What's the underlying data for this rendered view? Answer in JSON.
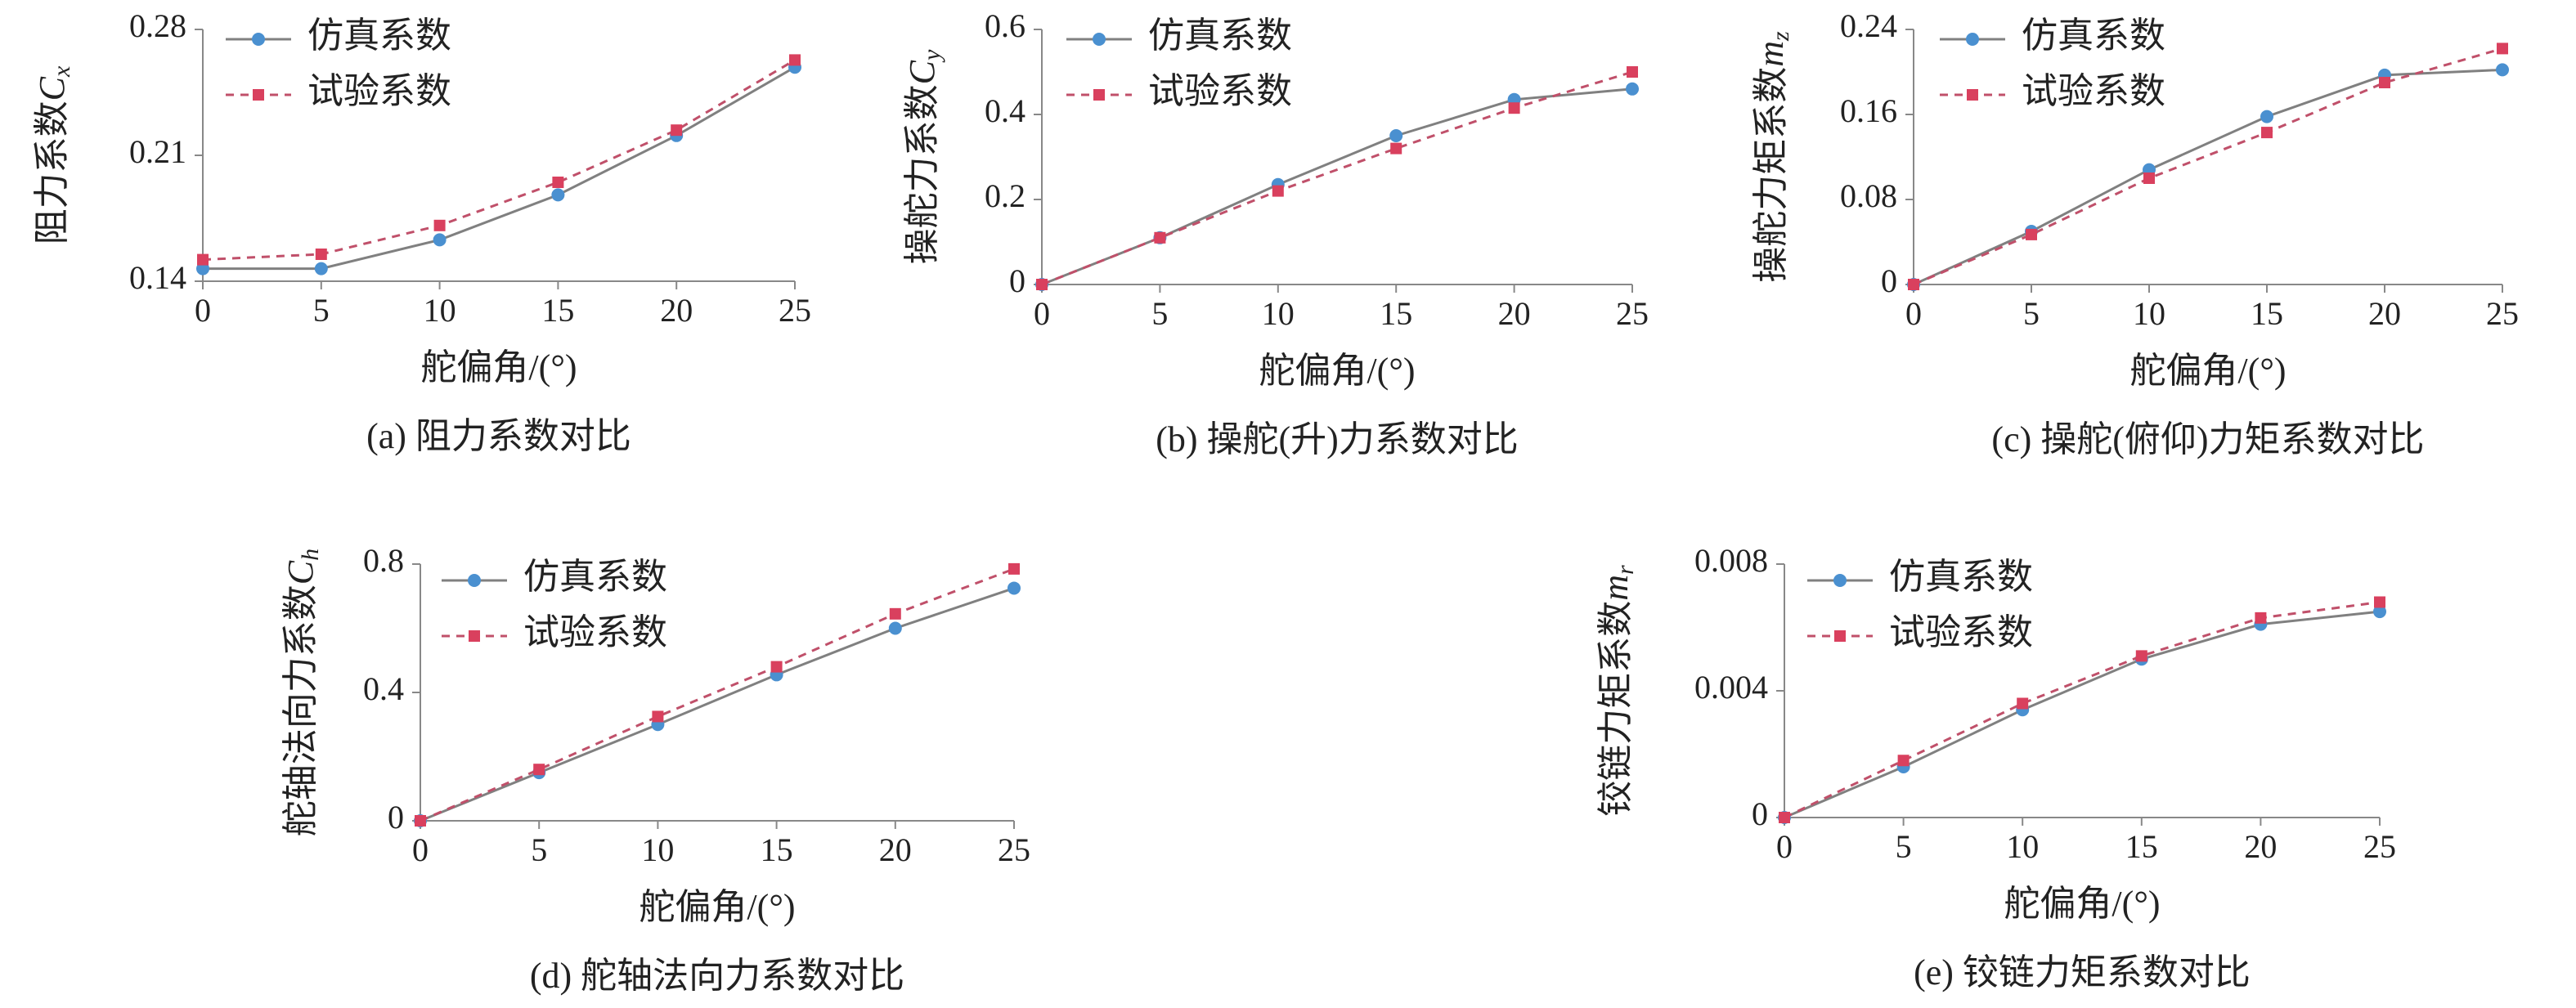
{
  "chart_data": [
    {
      "type": "line",
      "caption": "(a) 阻力系数对比",
      "xlabel": "舵偏角/(°)",
      "ylabel": {
        "text": "阻力系数",
        "symbol": "C",
        "sub": "x"
      },
      "x": [
        0,
        5,
        10,
        15,
        20,
        25
      ],
      "xlim": [
        0,
        25
      ],
      "xticks": [
        0,
        5,
        10,
        15,
        20,
        25
      ],
      "ylim": [
        0.14,
        0.28
      ],
      "yticks": [
        0.14,
        0.21,
        0.28
      ],
      "series": [
        {
          "name": "仿真系数",
          "color": "#4a90d0",
          "line_color": "#808080",
          "dash": false,
          "marker": "circle",
          "values": [
            0.147,
            0.147,
            0.163,
            0.188,
            0.221,
            0.259
          ]
        },
        {
          "name": "试验系数",
          "color": "#d9405e",
          "line_color": "#c0506a",
          "dash": true,
          "marker": "square",
          "values": [
            0.152,
            0.155,
            0.171,
            0.195,
            0.224,
            0.263
          ]
        }
      ]
    },
    {
      "type": "line",
      "caption": "(b) 操舵(升)力系数对比",
      "xlabel": "舵偏角/(°)",
      "ylabel": {
        "text": "操舵力系数",
        "symbol": "C",
        "sub": "y"
      },
      "x": [
        0,
        5,
        10,
        15,
        20,
        25
      ],
      "xlim": [
        0,
        25
      ],
      "xticks": [
        0,
        5,
        10,
        15,
        20,
        25
      ],
      "ylim": [
        0,
        0.6
      ],
      "yticks": [
        0,
        0.2,
        0.4,
        0.6
      ],
      "series": [
        {
          "name": "仿真系数",
          "color": "#4a90d0",
          "line_color": "#808080",
          "dash": false,
          "marker": "circle",
          "values": [
            0,
            0.11,
            0.235,
            0.35,
            0.435,
            0.46
          ]
        },
        {
          "name": "试验系数",
          "color": "#d9405e",
          "line_color": "#c0506a",
          "dash": true,
          "marker": "square",
          "values": [
            0,
            0.11,
            0.22,
            0.32,
            0.415,
            0.5
          ]
        }
      ]
    },
    {
      "type": "line",
      "caption": "(c) 操舵(俯仰)力矩系数对比",
      "xlabel": "舵偏角/(°)",
      "ylabel": {
        "text": "操舵力矩系数",
        "symbol": "m",
        "sub": "z"
      },
      "x": [
        0,
        5,
        10,
        15,
        20,
        25
      ],
      "xlim": [
        0,
        25
      ],
      "xticks": [
        0,
        5,
        10,
        15,
        20,
        25
      ],
      "ylim": [
        0,
        0.24
      ],
      "yticks": [
        0,
        0.08,
        0.16,
        0.24
      ],
      "series": [
        {
          "name": "仿真系数",
          "color": "#4a90d0",
          "line_color": "#808080",
          "dash": false,
          "marker": "circle",
          "values": [
            0,
            0.05,
            0.108,
            0.158,
            0.197,
            0.202
          ]
        },
        {
          "name": "试验系数",
          "color": "#d9405e",
          "line_color": "#c0506a",
          "dash": true,
          "marker": "square",
          "values": [
            0,
            0.047,
            0.1,
            0.143,
            0.19,
            0.222
          ]
        }
      ]
    },
    {
      "type": "line",
      "caption": "(d) 舵轴法向力系数对比",
      "xlabel": "舵偏角/(°)",
      "ylabel": {
        "text": "舵轴法向力系数",
        "symbol": "C",
        "sub": "h"
      },
      "x": [
        0,
        5,
        10,
        15,
        20,
        25
      ],
      "xlim": [
        0,
        25
      ],
      "xticks": [
        0,
        5,
        10,
        15,
        20,
        25
      ],
      "ylim": [
        0,
        0.8
      ],
      "yticks": [
        0,
        0.4,
        0.8
      ],
      "series": [
        {
          "name": "仿真系数",
          "color": "#4a90d0",
          "line_color": "#808080",
          "dash": false,
          "marker": "circle",
          "values": [
            0,
            0.15,
            0.3,
            0.455,
            0.6,
            0.725
          ]
        },
        {
          "name": "试验系数",
          "color": "#d9405e",
          "line_color": "#c0506a",
          "dash": true,
          "marker": "square",
          "values": [
            0,
            0.16,
            0.325,
            0.48,
            0.645,
            0.785
          ]
        }
      ]
    },
    {
      "type": "line",
      "caption": "(e) 铰链力矩系数对比",
      "xlabel": "舵偏角/(°)",
      "ylabel": {
        "text": "铰链力矩系数",
        "symbol": "m",
        "sub": "r"
      },
      "x": [
        0,
        5,
        10,
        15,
        20,
        25
      ],
      "xlim": [
        0,
        25
      ],
      "xticks": [
        0,
        5,
        10,
        15,
        20,
        25
      ],
      "ylim": [
        0,
        0.008
      ],
      "yticks": [
        0,
        0.004,
        0.008
      ],
      "series": [
        {
          "name": "仿真系数",
          "color": "#4a90d0",
          "line_color": "#808080",
          "dash": false,
          "marker": "circle",
          "values": [
            0,
            0.0016,
            0.0034,
            0.005,
            0.0061,
            0.0065
          ]
        },
        {
          "name": "试验系数",
          "color": "#d9405e",
          "line_color": "#c0506a",
          "dash": true,
          "marker": "square",
          "values": [
            0,
            0.0018,
            0.0036,
            0.0051,
            0.0063,
            0.0068
          ]
        }
      ]
    }
  ]
}
